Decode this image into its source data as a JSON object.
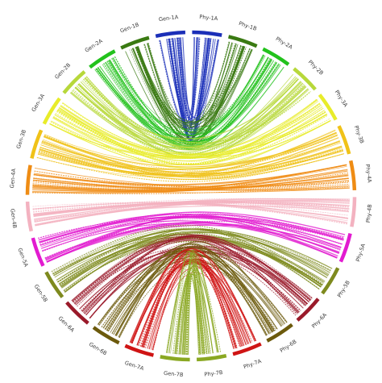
{
  "segments": [
    {
      "label": "Gen-1A",
      "color": "#1b2fb8"
    },
    {
      "label": "Gen-1B",
      "color": "#3a7a12"
    },
    {
      "label": "Gen-2A",
      "color": "#22c21c"
    },
    {
      "label": "Gen-2B",
      "color": "#b7d83a"
    },
    {
      "label": "Gen-3A",
      "color": "#e8ec2a"
    },
    {
      "label": "Gen-3B",
      "color": "#f0c218"
    },
    {
      "label": "Gen-4A",
      "color": "#ef8c14"
    },
    {
      "label": "Gen-4B",
      "color": "#f3b2c0"
    },
    {
      "label": "Gen-5A",
      "color": "#e21bd0"
    },
    {
      "label": "Gen-5B",
      "color": "#7e8a1e"
    },
    {
      "label": "Gen-6A",
      "color": "#9a1a2a"
    },
    {
      "label": "Gen-6B",
      "color": "#6c5a0c"
    },
    {
      "label": "Gen-7A",
      "color": "#cf1414"
    },
    {
      "label": "Gen-7B",
      "color": "#8aa822"
    },
    {
      "label": "Phy-7B",
      "color": "#8aa822"
    },
    {
      "label": "Phy-7A",
      "color": "#cf1414"
    },
    {
      "label": "Phy-6B",
      "color": "#6c5a0c"
    },
    {
      "label": "Phy-6A",
      "color": "#9a1a2a"
    },
    {
      "label": "Phy-5B",
      "color": "#7e8a1e"
    },
    {
      "label": "Phy-5A",
      "color": "#e21bd0"
    },
    {
      "label": "Phy-4B",
      "color": "#f3b2c0"
    },
    {
      "label": "Phy-4A",
      "color": "#ef8c14"
    },
    {
      "label": "Phy-3B",
      "color": "#f0c218"
    },
    {
      "label": "Phy-3A",
      "color": "#e8ec2a"
    },
    {
      "label": "Phy-2B",
      "color": "#b7d83a"
    },
    {
      "label": "Phy-2A",
      "color": "#22c21c"
    },
    {
      "label": "Phy-1B",
      "color": "#3a7a12"
    },
    {
      "label": "Phy-1A",
      "color": "#1b2fb8"
    }
  ]
}
